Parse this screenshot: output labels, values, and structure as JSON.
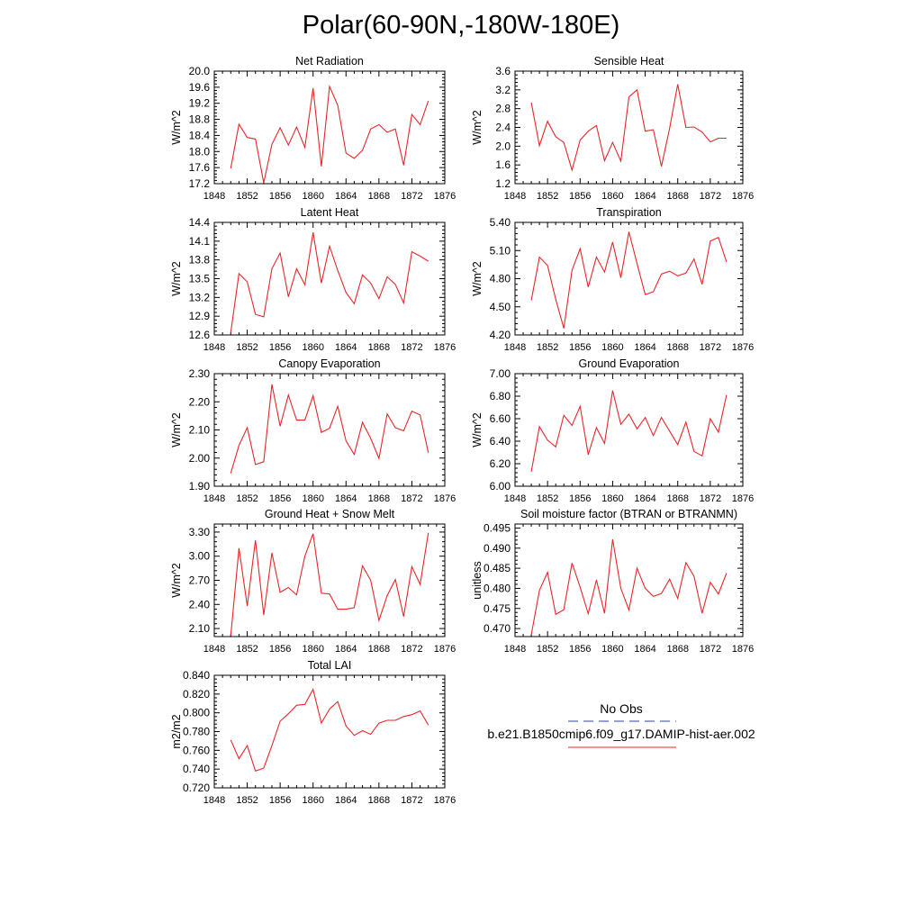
{
  "title": "Polar(60-90N,-180W-180E)",
  "chart_data": [
    {
      "type": "line",
      "title": "Net Radiation",
      "ylabel": "W/m^2",
      "xlim": [
        1848,
        1876
      ],
      "x_ticks": [
        "1848",
        "1852",
        "1856",
        "1860",
        "1864",
        "1868",
        "1872",
        "1876"
      ],
      "ylim": [
        17.2,
        20.0
      ],
      "y_ticks": [
        "17.2",
        "17.6",
        "18.0",
        "18.4",
        "18.8",
        "19.2",
        "19.6",
        "20.0"
      ],
      "x": [
        1850,
        1851,
        1852,
        1853,
        1854,
        1855,
        1856,
        1857,
        1858,
        1859,
        1860,
        1861,
        1862,
        1863,
        1864,
        1865,
        1866,
        1867,
        1868,
        1869,
        1870,
        1871,
        1872,
        1873,
        1874
      ],
      "series": [
        {
          "values": [
            17.58,
            18.68,
            18.35,
            18.31,
            17.22,
            18.18,
            18.59,
            18.16,
            18.61,
            18.1,
            19.58,
            17.63,
            19.62,
            19.15,
            17.96,
            17.83,
            18.03,
            18.56,
            18.67,
            18.48,
            18.56,
            17.66,
            18.92,
            18.67,
            19.26
          ]
        }
      ]
    },
    {
      "type": "line",
      "title": "Sensible Heat",
      "ylabel": "W/m^2",
      "xlim": [
        1848,
        1876
      ],
      "x_ticks": [
        "1848",
        "1852",
        "1856",
        "1860",
        "1864",
        "1868",
        "1872",
        "1876"
      ],
      "ylim": [
        1.2,
        3.6
      ],
      "y_ticks": [
        "1.2",
        "1.6",
        "2.0",
        "2.4",
        "2.8",
        "3.2",
        "3.6"
      ],
      "x": [
        1850,
        1851,
        1852,
        1853,
        1854,
        1855,
        1856,
        1857,
        1858,
        1859,
        1860,
        1861,
        1862,
        1863,
        1864,
        1865,
        1866,
        1867,
        1868,
        1869,
        1870,
        1871,
        1872,
        1873,
        1874
      ],
      "series": [
        {
          "values": [
            2.93,
            2.01,
            2.53,
            2.2,
            2.08,
            1.49,
            2.13,
            2.32,
            2.44,
            1.69,
            2.08,
            1.68,
            3.05,
            3.2,
            2.32,
            2.35,
            1.57,
            2.38,
            3.32,
            2.4,
            2.41,
            2.3,
            2.09,
            2.17,
            2.17
          ]
        }
      ]
    },
    {
      "type": "line",
      "title": "Latent Heat",
      "ylabel": "W/m^2",
      "xlim": [
        1848,
        1876
      ],
      "x_ticks": [
        "1848",
        "1852",
        "1856",
        "1860",
        "1864",
        "1868",
        "1872",
        "1876"
      ],
      "ylim": [
        12.6,
        14.4
      ],
      "y_ticks": [
        "12.6",
        "12.9",
        "13.2",
        "13.5",
        "13.8",
        "14.1",
        "14.4"
      ],
      "x": [
        1850,
        1851,
        1852,
        1853,
        1854,
        1855,
        1856,
        1857,
        1858,
        1859,
        1860,
        1861,
        1862,
        1863,
        1864,
        1865,
        1866,
        1867,
        1868,
        1869,
        1870,
        1871,
        1872,
        1873,
        1874
      ],
      "series": [
        {
          "values": [
            12.64,
            13.58,
            13.45,
            12.93,
            12.89,
            13.66,
            13.91,
            13.21,
            13.66,
            13.4,
            14.24,
            13.43,
            14.02,
            13.63,
            13.28,
            13.1,
            13.56,
            13.43,
            13.18,
            13.53,
            13.41,
            13.11,
            13.93,
            13.86,
            13.78
          ]
        }
      ]
    },
    {
      "type": "line",
      "title": "Transpiration",
      "ylabel": "W/m^2",
      "xlim": [
        1848,
        1876
      ],
      "x_ticks": [
        "1848",
        "1852",
        "1856",
        "1860",
        "1864",
        "1868",
        "1872",
        "1876"
      ],
      "ylim": [
        4.2,
        5.4
      ],
      "y_ticks": [
        "4.20",
        "4.50",
        "4.80",
        "5.10",
        "5.40"
      ],
      "x": [
        1850,
        1851,
        1852,
        1853,
        1854,
        1855,
        1856,
        1857,
        1858,
        1859,
        1860,
        1861,
        1862,
        1863,
        1864,
        1865,
        1866,
        1867,
        1868,
        1869,
        1870,
        1871,
        1872,
        1873,
        1874
      ],
      "series": [
        {
          "values": [
            4.57,
            5.03,
            4.94,
            4.58,
            4.27,
            4.89,
            5.12,
            4.71,
            5.03,
            4.87,
            5.19,
            4.81,
            5.3,
            4.96,
            4.63,
            4.66,
            4.85,
            4.88,
            4.83,
            4.86,
            5.01,
            4.74,
            5.2,
            5.24,
            4.98
          ]
        }
      ]
    },
    {
      "type": "line",
      "title": "Canopy Evaporation",
      "ylabel": "W/m^2",
      "xlim": [
        1848,
        1876
      ],
      "x_ticks": [
        "1848",
        "1852",
        "1856",
        "1860",
        "1864",
        "1868",
        "1872",
        "1876"
      ],
      "ylim": [
        1.9,
        2.3
      ],
      "y_ticks": [
        "1.90",
        "2.00",
        "2.10",
        "2.20",
        "2.30"
      ],
      "x": [
        1850,
        1851,
        1852,
        1853,
        1854,
        1855,
        1856,
        1857,
        1858,
        1859,
        1860,
        1861,
        1862,
        1863,
        1864,
        1865,
        1866,
        1867,
        1868,
        1869,
        1870,
        1871,
        1872,
        1873,
        1874
      ],
      "series": [
        {
          "values": [
            1.946,
            2.045,
            2.108,
            1.977,
            1.987,
            2.262,
            2.113,
            2.224,
            2.135,
            2.135,
            2.222,
            2.091,
            2.106,
            2.184,
            2.061,
            2.013,
            2.127,
            2.07,
            1.999,
            2.157,
            2.108,
            2.097,
            2.167,
            2.153,
            2.019
          ]
        }
      ]
    },
    {
      "type": "line",
      "title": "Ground Evaporation",
      "ylabel": "W/m^2",
      "xlim": [
        1848,
        1876
      ],
      "x_ticks": [
        "1848",
        "1852",
        "1856",
        "1860",
        "1864",
        "1868",
        "1872",
        "1876"
      ],
      "ylim": [
        6.0,
        7.0
      ],
      "y_ticks": [
        "6.00",
        "6.20",
        "6.40",
        "6.60",
        "6.80",
        "7.00"
      ],
      "x": [
        1850,
        1851,
        1852,
        1853,
        1854,
        1855,
        1856,
        1857,
        1858,
        1859,
        1860,
        1861,
        1862,
        1863,
        1864,
        1865,
        1866,
        1867,
        1868,
        1869,
        1870,
        1871,
        1872,
        1873,
        1874
      ],
      "series": [
        {
          "values": [
            6.13,
            6.53,
            6.41,
            6.35,
            6.63,
            6.54,
            6.71,
            6.28,
            6.52,
            6.38,
            6.85,
            6.55,
            6.64,
            6.51,
            6.61,
            6.45,
            6.61,
            6.49,
            6.37,
            6.57,
            6.31,
            6.27,
            6.6,
            6.48,
            6.81
          ]
        }
      ]
    },
    {
      "type": "line",
      "title": "Ground Heat + Snow Melt",
      "ylabel": "W/m^2",
      "xlim": [
        1848,
        1876
      ],
      "x_ticks": [
        "1848",
        "1852",
        "1856",
        "1860",
        "1864",
        "1868",
        "1872",
        "1876"
      ],
      "ylim": [
        2.0,
        3.4
      ],
      "y_ticks": [
        "2.10",
        "2.40",
        "2.70",
        "3.00",
        "3.30"
      ],
      "x": [
        1850,
        1851,
        1852,
        1853,
        1854,
        1855,
        1856,
        1857,
        1858,
        1859,
        1860,
        1861,
        1862,
        1863,
        1864,
        1865,
        1866,
        1867,
        1868,
        1869,
        1870,
        1871,
        1872,
        1873,
        1874
      ],
      "series": [
        {
          "values": [
            2.01,
            3.1,
            2.38,
            3.2,
            2.27,
            3.04,
            2.55,
            2.61,
            2.52,
            3.0,
            3.28,
            2.54,
            2.53,
            2.34,
            2.34,
            2.36,
            2.88,
            2.7,
            2.2,
            2.51,
            2.71,
            2.25,
            2.87,
            2.65,
            3.29
          ]
        }
      ]
    },
    {
      "type": "line",
      "title": "Soil moisture factor (BTRAN or BTRANMN)",
      "ylabel": "unitless",
      "xlim": [
        1848,
        1876
      ],
      "x_ticks": [
        "1848",
        "1852",
        "1856",
        "1860",
        "1864",
        "1868",
        "1872",
        "1876"
      ],
      "ylim": [
        0.468,
        0.496
      ],
      "y_ticks": [
        "0.470",
        "0.475",
        "0.480",
        "0.485",
        "0.490",
        "0.495"
      ],
      "x": [
        1850,
        1851,
        1852,
        1853,
        1854,
        1855,
        1856,
        1857,
        1858,
        1859,
        1860,
        1861,
        1862,
        1863,
        1864,
        1865,
        1866,
        1867,
        1868,
        1869,
        1870,
        1871,
        1872,
        1873,
        1874
      ],
      "series": [
        {
          "values": [
            0.4685,
            0.4795,
            0.484,
            0.4735,
            0.4747,
            0.4863,
            0.4803,
            0.4737,
            0.4821,
            0.4738,
            0.4922,
            0.48,
            0.4746,
            0.485,
            0.48,
            0.478,
            0.4787,
            0.4823,
            0.4775,
            0.4864,
            0.483,
            0.4738,
            0.4815,
            0.4786,
            0.4838
          ]
        }
      ]
    },
    {
      "type": "line",
      "title": "Total LAI",
      "ylabel": "m2/m2",
      "xlim": [
        1848,
        1876
      ],
      "x_ticks": [
        "1848",
        "1852",
        "1856",
        "1860",
        "1864",
        "1868",
        "1872",
        "1876"
      ],
      "ylim": [
        0.72,
        0.84
      ],
      "y_ticks": [
        "0.720",
        "0.740",
        "0.760",
        "0.780",
        "0.800",
        "0.820",
        "0.840"
      ],
      "x": [
        1850,
        1851,
        1852,
        1853,
        1854,
        1855,
        1856,
        1857,
        1858,
        1859,
        1860,
        1861,
        1862,
        1863,
        1864,
        1865,
        1866,
        1867,
        1868,
        1869,
        1870,
        1871,
        1872,
        1873,
        1874
      ],
      "series": [
        {
          "values": [
            0.771,
            0.751,
            0.765,
            0.738,
            0.741,
            0.765,
            0.791,
            0.799,
            0.808,
            0.809,
            0.825,
            0.789,
            0.804,
            0.812,
            0.786,
            0.776,
            0.781,
            0.777,
            0.789,
            0.792,
            0.792,
            0.796,
            0.798,
            0.802,
            0.787
          ]
        }
      ]
    }
  ],
  "legend": {
    "items": [
      {
        "label": "No Obs",
        "color": "#2f3fa8",
        "style": "dashed"
      },
      {
        "label": "b.e21.B1850cmip6.f09_g17.DAMIP-hist-aer.002",
        "color": "#e8262a",
        "style": "solid"
      }
    ]
  },
  "colors": {
    "line": "#e8262a",
    "axis": "#000000"
  }
}
